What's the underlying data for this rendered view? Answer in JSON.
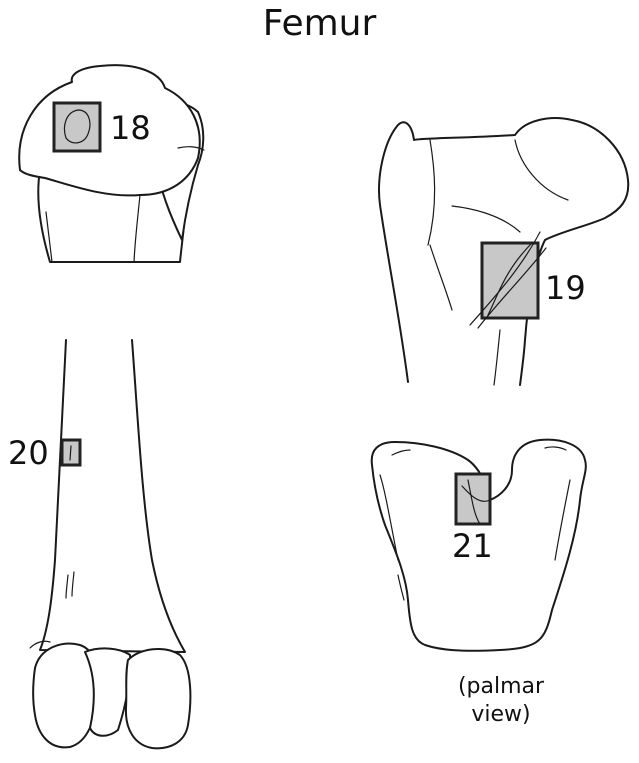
{
  "title": "Femur",
  "sample_labels": {
    "s18": "18",
    "s19": "19",
    "s20": "20",
    "s21": "21"
  },
  "caption": {
    "line1": "(palmar",
    "line2": "view)"
  },
  "colors": {
    "outline": "#1a1a1a",
    "sample_fill": "#c8c8c8",
    "sample_border": "#222222"
  }
}
